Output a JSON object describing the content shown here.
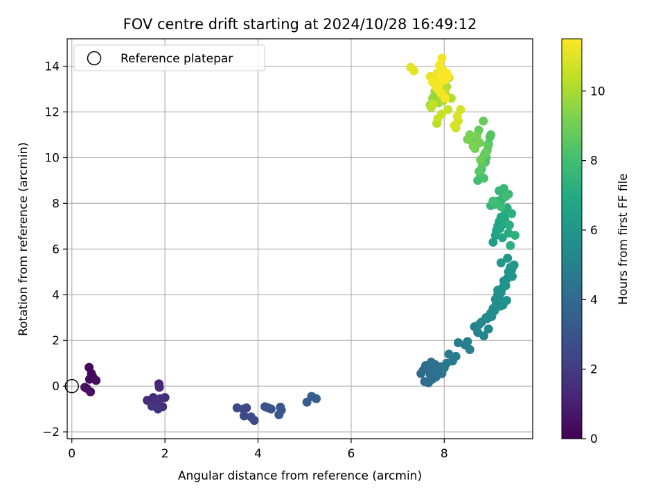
{
  "chart_data": {
    "type": "scatter",
    "title": "FOV centre drift starting at 2024/10/28 16:49:12",
    "xlabel": "Angular distance from reference (arcmin)",
    "ylabel": "Rotation from reference (arcmin)",
    "xlim": [
      -0.1,
      9.9
    ],
    "ylim": [
      -2.3,
      15.2
    ],
    "xticks": [
      0,
      2,
      4,
      6,
      8
    ],
    "yticks": [
      -2,
      0,
      2,
      4,
      6,
      8,
      10,
      12,
      14
    ],
    "grid": true,
    "legend": {
      "placement": "top-left",
      "entries": [
        {
          "label": "Reference platepar",
          "marker": "hollow-circle"
        }
      ]
    },
    "reference_point": {
      "x": 0,
      "y": 0
    },
    "colorbar": {
      "label": "Hours from first FF file",
      "colormap": "viridis",
      "range": [
        0,
        11.5
      ],
      "ticks": [
        0,
        2,
        4,
        6,
        8,
        10
      ]
    },
    "series": [
      {
        "x": [
          0.37,
          0.42,
          0.45,
          0.38,
          0.52,
          0.32,
          0.28,
          0.4,
          1.87,
          1.88,
          1.75,
          1.7,
          2.0,
          1.62,
          1.82,
          1.95,
          1.78,
          1.9,
          1.85,
          1.72,
          3.55,
          3.68,
          3.75,
          3.7,
          3.85,
          3.92,
          4.15,
          4.22,
          4.28,
          4.48,
          4.5,
          4.45,
          5.05,
          5.15,
          5.25,
          7.5,
          7.55,
          7.6,
          7.65,
          7.7,
          7.72,
          7.78,
          7.82,
          7.88,
          7.92,
          7.95,
          8.0,
          8.05,
          8.1,
          8.18,
          8.25,
          8.3,
          8.45,
          8.55,
          8.5,
          7.58,
          7.66,
          7.74,
          7.8,
          7.86,
          8.65,
          8.72,
          8.8,
          8.85,
          8.9,
          8.75,
          8.95,
          9.0,
          9.05,
          9.1,
          9.15,
          9.2,
          9.25,
          9.3,
          9.35,
          9.4,
          9.45,
          9.5,
          9.12,
          9.18,
          9.22,
          9.28,
          9.32,
          9.38,
          9.42,
          8.92,
          9.02,
          9.08,
          9.26,
          9.34,
          9.46,
          9.15,
          9.22,
          9.36,
          9.05,
          9.1,
          9.12,
          9.15,
          9.18,
          9.2,
          9.22,
          9.25,
          9.28,
          9.3,
          9.32,
          9.35,
          9.38,
          9.4,
          9.42,
          9.45,
          9.52,
          9.15,
          9.25,
          9.32,
          9.0,
          9.08,
          9.18,
          9.28,
          9.38,
          9.12,
          9.22,
          9.32,
          9.05,
          8.72,
          8.78,
          8.8,
          8.85,
          8.88,
          8.9,
          8.92,
          8.95,
          8.98,
          9.0,
          8.75,
          8.82,
          8.86,
          8.94,
          8.68,
          8.74,
          8.84,
          8.88,
          8.78,
          8.6,
          8.66,
          8.7,
          8.76,
          8.5,
          8.55,
          8.62,
          7.7,
          7.75,
          7.8,
          7.82,
          7.85,
          7.88,
          7.9,
          7.95,
          7.98,
          8.02,
          8.05,
          8.1,
          8.15,
          7.72,
          7.84,
          7.92,
          8.0,
          7.76,
          7.86,
          7.94,
          8.08,
          8.25,
          8.3,
          8.35,
          8.22,
          8.28,
          7.28,
          7.35,
          7.7,
          7.8,
          7.85,
          7.88,
          7.9,
          7.95,
          7.82,
          7.92,
          8.0,
          8.05,
          8.08,
          7.75,
          7.86,
          7.94,
          8.02,
          7.88,
          7.96
        ],
        "y": [
          0.82,
          0.55,
          0.4,
          0.3,
          0.25,
          -0.1,
          -0.05,
          -0.25,
          0.1,
          -0.05,
          -0.5,
          -0.6,
          -0.5,
          -0.62,
          -0.85,
          -0.9,
          -0.75,
          -0.55,
          -1.0,
          -0.88,
          -0.95,
          -1.0,
          -0.95,
          -1.3,
          -1.35,
          -1.5,
          -0.9,
          -0.95,
          -1.0,
          -0.92,
          -1.05,
          -1.25,
          -0.7,
          -0.45,
          -0.55,
          0.55,
          0.7,
          0.9,
          0.8,
          0.5,
          1.05,
          0.75,
          0.4,
          0.6,
          0.85,
          0.55,
          0.8,
          1.0,
          1.4,
          1.1,
          1.3,
          1.9,
          1.8,
          1.6,
          1.95,
          0.2,
          0.15,
          0.3,
          0.95,
          0.65,
          2.6,
          2.35,
          2.8,
          2.2,
          3.0,
          2.7,
          2.5,
          3.2,
          3.4,
          3.8,
          4.0,
          3.5,
          4.3,
          4.5,
          4.7,
          4.9,
          5.1,
          5.3,
          3.65,
          3.85,
          4.1,
          4.6,
          4.4,
          5.0,
          5.2,
          2.95,
          3.05,
          3.3,
          3.55,
          3.75,
          4.8,
          4.2,
          5.4,
          5.6,
          6.3,
          6.6,
          6.8,
          7.0,
          7.2,
          6.9,
          7.4,
          6.5,
          7.1,
          7.3,
          7.6,
          7.8,
          6.7,
          7.05,
          6.15,
          7.55,
          6.6,
          8.1,
          8.2,
          8.4,
          7.9,
          7.95,
          8.55,
          8.65,
          8.4,
          8.0,
          7.85,
          8.3,
          8.1,
          9.0,
          9.2,
          9.5,
          9.1,
          9.8,
          10.0,
          10.3,
          10.6,
          10.9,
          11.0,
          9.4,
          9.7,
          10.1,
          10.5,
          10.8,
          11.2,
          11.6,
          10.2,
          9.9,
          10.7,
          10.4,
          10.95,
          10.65,
          10.8,
          11.0,
          10.5,
          12.3,
          12.6,
          12.9,
          13.2,
          13.0,
          12.4,
          12.7,
          13.3,
          12.5,
          12.8,
          13.1,
          13.5,
          12.6,
          12.2,
          11.5,
          13.0,
          12.9,
          12.35,
          11.7,
          11.9,
          12.1,
          11.3,
          11.6,
          12.1,
          11.4,
          11.8,
          13.95,
          13.8,
          13.55,
          13.4,
          13.7,
          13.2,
          14.05,
          14.35,
          13.1,
          13.6,
          13.4,
          13.7,
          13.55,
          13.3,
          13.0,
          12.8,
          12.6,
          13.2,
          13.85
        ],
        "c": [
          0.1,
          0.2,
          0.25,
          0.3,
          0.35,
          0.4,
          0.45,
          0.5,
          1.2,
          1.25,
          1.3,
          1.35,
          1.4,
          1.45,
          1.5,
          1.55,
          1.6,
          1.65,
          1.7,
          1.75,
          2.4,
          2.45,
          2.5,
          2.55,
          2.6,
          2.65,
          2.9,
          2.95,
          3.0,
          3.05,
          3.1,
          3.15,
          3.4,
          3.45,
          3.5,
          4.0,
          4.05,
          4.1,
          4.15,
          4.2,
          4.25,
          4.3,
          4.35,
          4.4,
          4.45,
          4.5,
          4.55,
          4.6,
          4.65,
          4.7,
          4.75,
          4.8,
          4.85,
          4.9,
          4.95,
          4.02,
          4.08,
          4.12,
          4.18,
          4.22,
          5.0,
          5.1,
          5.15,
          5.2,
          5.3,
          5.35,
          5.4,
          5.5,
          5.55,
          5.6,
          5.7,
          5.75,
          5.8,
          5.85,
          5.9,
          6.0,
          6.05,
          6.1,
          5.62,
          5.68,
          5.72,
          5.82,
          5.88,
          5.95,
          6.02,
          5.45,
          5.48,
          5.58,
          5.65,
          5.78,
          5.98,
          5.74,
          6.08,
          6.12,
          6.4,
          6.5,
          6.6,
          6.7,
          6.75,
          6.8,
          6.85,
          6.9,
          6.95,
          7.0,
          7.05,
          7.1,
          7.15,
          7.2,
          7.25,
          7.3,
          7.35,
          7.4,
          7.45,
          7.5,
          7.55,
          7.6,
          7.65,
          7.7,
          7.75,
          7.8,
          7.85,
          7.9,
          7.95,
          8.0,
          8.05,
          8.1,
          8.15,
          8.2,
          8.25,
          8.3,
          8.35,
          8.4,
          8.45,
          8.5,
          8.55,
          8.6,
          8.65,
          8.7,
          8.75,
          8.8,
          8.85,
          8.9,
          8.95,
          9.0,
          9.05,
          9.1,
          9.15,
          9.2,
          9.25,
          9.6,
          9.65,
          9.7,
          9.75,
          9.8,
          9.85,
          9.9,
          9.95,
          10.0,
          10.05,
          10.1,
          10.15,
          10.2,
          10.25,
          10.3,
          10.35,
          10.4,
          10.45,
          10.5,
          10.55,
          10.6,
          10.65,
          10.7,
          10.75,
          10.8,
          10.85,
          11.0,
          11.05,
          11.1,
          11.15,
          11.2,
          11.25,
          11.3,
          11.35,
          11.4,
          11.42,
          11.44,
          11.45,
          11.46,
          11.3,
          11.32,
          11.34,
          11.36,
          11.38,
          11.4
        ]
      }
    ]
  }
}
